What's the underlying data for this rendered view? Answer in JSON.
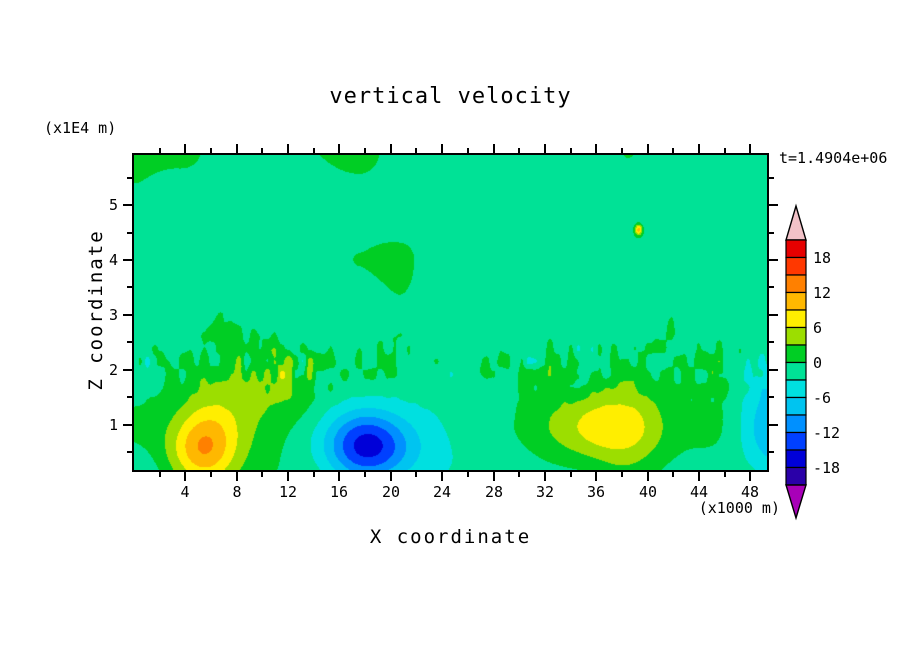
{
  "figure": {
    "background": "#ffffff",
    "frame_color": "#000000",
    "text_color": "#000000"
  },
  "chart_data": {
    "type": "heatmap",
    "title": "vertical velocity",
    "time_annotation": "t=1.4904e+06",
    "xlabel": "X coordinate",
    "ylabel": "Z coordinate",
    "x_unit": "(x1000 m)",
    "y_unit": "(x1E4 m)",
    "xlim": [
      0,
      49.3
    ],
    "ylim": [
      0.18,
      5.91
    ],
    "x_ticks": [
      4,
      8,
      12,
      16,
      20,
      24,
      28,
      32,
      36,
      40,
      44,
      48
    ],
    "x_minor_step": 2,
    "y_ticks": [
      1,
      2,
      3,
      4,
      5
    ],
    "y_minor_step": 0.5,
    "levels": [
      -21,
      -18,
      -15,
      -12,
      -9,
      -6,
      -3,
      0,
      3,
      6,
      9,
      12,
      15,
      18,
      21
    ],
    "band_colors": [
      "#A800B8",
      "#2A00A8",
      "#0000D8",
      "#0040FF",
      "#0090FF",
      "#00C4F0",
      "#00E0E0",
      "#00E296",
      "#00CE24",
      "#9CDE00",
      "#FFEE00",
      "#FFB800",
      "#FF8000",
      "#FF3800",
      "#E60000",
      "#F2C2C8"
    ],
    "colorbar_labels": [
      "18",
      "12",
      "6",
      "0",
      "-6",
      "-12",
      "-18"
    ],
    "features": [
      {
        "name": "updraft-left-core",
        "x": 5.2,
        "z": 0.55,
        "amplitude": 11.0,
        "sigma_x": 2.6,
        "sigma_z": 0.66
      },
      {
        "name": "updraft-left-halo",
        "x": 6.5,
        "z": 1.2,
        "amplitude": 4.6,
        "sigma_x": 5.2,
        "sigma_z": 0.9
      },
      {
        "name": "updraft-left-spur",
        "x": 11.8,
        "z": 1.75,
        "amplitude": 3.0,
        "sigma_x": 2.6,
        "sigma_z": 0.55
      },
      {
        "name": "downdraft-center-core",
        "x": 18.2,
        "z": 0.6,
        "amplitude": -12.5,
        "sigma_x": 3.3,
        "sigma_z": 0.6
      },
      {
        "name": "downdraft-center-halo",
        "x": 19.5,
        "z": 0.85,
        "amplitude": -4.2,
        "sigma_x": 6.0,
        "sigma_z": 0.85
      },
      {
        "name": "updraft-right",
        "x": 37.5,
        "z": 0.95,
        "amplitude": 8.4,
        "sigma_x": 4.6,
        "sigma_z": 0.7
      },
      {
        "name": "downdraft-right-edge",
        "x": 50.5,
        "z": 0.85,
        "amplitude": -7.0,
        "sigma_x": 2.8,
        "sigma_z": 0.95
      },
      {
        "name": "speck-upper-right",
        "x": 39.3,
        "z": 4.55,
        "amplitude": 12.0,
        "sigma_x": 0.3,
        "sigma_z": 0.1
      }
    ],
    "noise_texture": {
      "background_value": -1.1,
      "patch": {
        "amplitude": 1.5,
        "scale_x": 3.5,
        "scale_z": 1.0
      },
      "large": {
        "amplitude": 0.9,
        "scale_x": 8.0,
        "scale_z": 2.2
      },
      "speckle_band": {
        "amplitude": 4.3,
        "center_z": 2.08,
        "sigma_z": 0.45,
        "scale_x": 0.55,
        "scale_z": 0.26
      }
    }
  }
}
